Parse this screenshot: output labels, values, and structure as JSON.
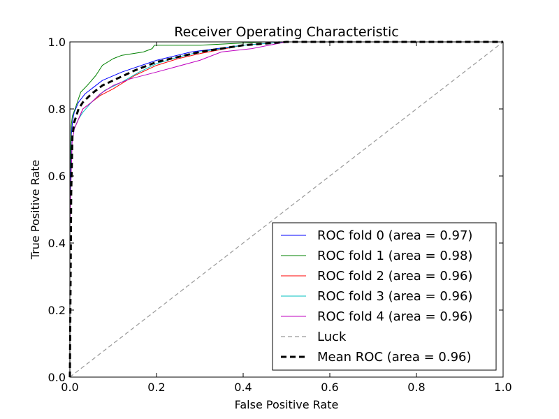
{
  "chart_data": {
    "type": "line",
    "title": "Receiver Operating Characteristic",
    "xlabel": "False Positive Rate",
    "ylabel": "True Positive Rate",
    "xlim": [
      0,
      1
    ],
    "ylim": [
      0,
      1
    ],
    "xticks": [
      "0.0",
      "0.2",
      "0.4",
      "0.6",
      "0.8",
      "1.0"
    ],
    "yticks": [
      "0.0",
      "0.2",
      "0.4",
      "0.6",
      "0.8",
      "1.0"
    ],
    "grid": false,
    "legend_position": "lower-right",
    "series": [
      {
        "name": "ROC fold 0 (area = 0.97)",
        "color": "#0000ff",
        "dash": "solid",
        "x": [
          0.0,
          0.0,
          0.003,
          0.006,
          0.01,
          0.02,
          0.035,
          0.05,
          0.075,
          0.12,
          0.2,
          0.28,
          0.4,
          0.5,
          1.0
        ],
        "y": [
          0.0,
          0.55,
          0.72,
          0.76,
          0.79,
          0.82,
          0.845,
          0.86,
          0.885,
          0.91,
          0.945,
          0.97,
          0.99,
          1.0,
          1.0
        ]
      },
      {
        "name": "ROC fold 1 (area = 0.98)",
        "color": "#008000",
        "dash": "solid",
        "x": [
          0.0,
          0.0,
          0.003,
          0.006,
          0.012,
          0.025,
          0.04,
          0.06,
          0.075,
          0.1,
          0.12,
          0.17,
          0.19,
          0.195,
          0.3,
          0.45,
          1.0
        ],
        "y": [
          0.0,
          0.6,
          0.75,
          0.78,
          0.8,
          0.85,
          0.87,
          0.9,
          0.93,
          0.95,
          0.96,
          0.97,
          0.98,
          0.99,
          0.99,
          1.0,
          1.0
        ]
      },
      {
        "name": "ROC fold 2 (area = 0.96)",
        "color": "#ff0000",
        "dash": "solid",
        "x": [
          0.0,
          0.0,
          0.005,
          0.01,
          0.02,
          0.03,
          0.05,
          0.07,
          0.1,
          0.15,
          0.2,
          0.25,
          0.3,
          0.4,
          0.5,
          1.0
        ],
        "y": [
          0.0,
          0.5,
          0.7,
          0.74,
          0.77,
          0.8,
          0.82,
          0.84,
          0.86,
          0.9,
          0.93,
          0.95,
          0.965,
          0.99,
          1.0,
          1.0
        ]
      },
      {
        "name": "ROC fold 3 (area = 0.96)",
        "color": "#00bfbf",
        "dash": "solid",
        "x": [
          0.0,
          0.0,
          0.005,
          0.01,
          0.02,
          0.03,
          0.05,
          0.08,
          0.12,
          0.16,
          0.2,
          0.25,
          0.3,
          0.4,
          0.5,
          1.0
        ],
        "y": [
          0.0,
          0.5,
          0.7,
          0.74,
          0.77,
          0.79,
          0.82,
          0.855,
          0.88,
          0.91,
          0.935,
          0.955,
          0.97,
          0.99,
          1.0,
          1.0
        ]
      },
      {
        "name": "ROC fold 4 (area = 0.96)",
        "color": "#bf00bf",
        "dash": "solid",
        "x": [
          0.0,
          0.0,
          0.005,
          0.01,
          0.02,
          0.03,
          0.05,
          0.07,
          0.1,
          0.14,
          0.2,
          0.3,
          0.35,
          0.42,
          0.46,
          0.5,
          1.0
        ],
        "y": [
          0.0,
          0.45,
          0.7,
          0.74,
          0.77,
          0.8,
          0.82,
          0.845,
          0.87,
          0.89,
          0.91,
          0.945,
          0.97,
          0.98,
          0.99,
          1.0,
          1.0
        ]
      },
      {
        "name": "Luck",
        "color": "#999999",
        "dash": "dashed",
        "x": [
          0,
          1
        ],
        "y": [
          0,
          1
        ]
      },
      {
        "name": "Mean ROC (area = 0.96)",
        "color": "#000000",
        "dash": "dashed-bold",
        "x": [
          0.0,
          0.0,
          0.003,
          0.006,
          0.01,
          0.02,
          0.03,
          0.05,
          0.075,
          0.1,
          0.15,
          0.2,
          0.25,
          0.3,
          0.4,
          0.5,
          1.0
        ],
        "y": [
          0.0,
          0.0,
          0.55,
          0.72,
          0.76,
          0.8,
          0.82,
          0.845,
          0.87,
          0.885,
          0.915,
          0.94,
          0.955,
          0.97,
          0.99,
          1.0,
          1.0
        ]
      }
    ]
  }
}
